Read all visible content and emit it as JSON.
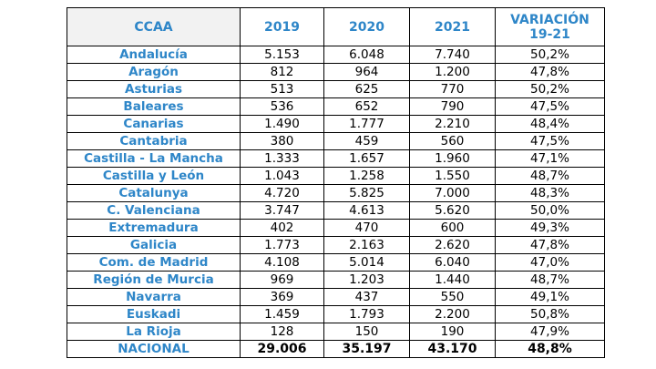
{
  "table": {
    "headers": [
      "CCAA",
      "2019",
      "2020",
      "2021",
      "VARIACIÓN\n19-21"
    ],
    "rows": [
      [
        "Andalucía",
        "5.153",
        "6.048",
        "7.740",
        "50,2%"
      ],
      [
        "Aragón",
        "812",
        "964",
        "1.200",
        "47,8%"
      ],
      [
        "Asturias",
        "513",
        "625",
        "770",
        "50,2%"
      ],
      [
        "Baleares",
        "536",
        "652",
        "790",
        "47,5%"
      ],
      [
        "Canarias",
        "1.490",
        "1.777",
        "2.210",
        "48,4%"
      ],
      [
        "Cantabria",
        "380",
        "459",
        "560",
        "47,5%"
      ],
      [
        "Castilla - La Mancha",
        "1.333",
        "1.657",
        "1.960",
        "47,1%"
      ],
      [
        "Castilla y León",
        "1.043",
        "1.258",
        "1.550",
        "48,7%"
      ],
      [
        "Catalunya",
        "4.720",
        "5.825",
        "7.000",
        "48,3%"
      ],
      [
        "C. Valenciana",
        "3.747",
        "4.613",
        "5.620",
        "50,0%"
      ],
      [
        "Extremadura",
        "402",
        "470",
        "600",
        "49,3%"
      ],
      [
        "Galicia",
        "1.773",
        "2.163",
        "2.620",
        "47,8%"
      ],
      [
        "Com. de Madrid",
        "4.108",
        "5.014",
        "6.040",
        "47,0%"
      ],
      [
        "Región de Murcia",
        "969",
        "1.203",
        "1.440",
        "48,7%"
      ],
      [
        "Navarra",
        "369",
        "437",
        "550",
        "49,1%"
      ],
      [
        "Euskadi",
        "1.459",
        "1.793",
        "2.200",
        "50,8%"
      ],
      [
        "La Rioja",
        "128",
        "150",
        "190",
        "47,9%"
      ]
    ],
    "total": [
      "NACIONAL",
      "29.006",
      "35.197",
      "43.170",
      "48,8%"
    ]
  },
  "colors": {
    "header_text": "#2e86c8",
    "ccaa_text": "#2e86c8",
    "header_first_bg": "#f2f2f2",
    "border": "#000000"
  }
}
